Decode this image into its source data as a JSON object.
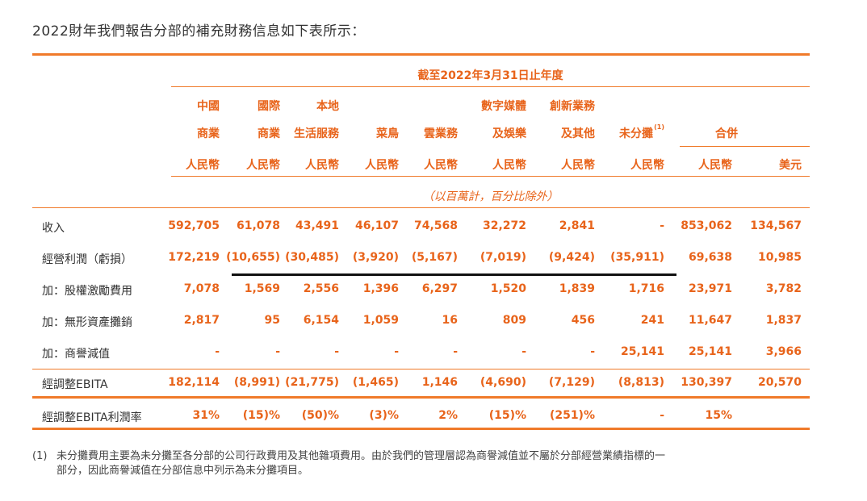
{
  "intro": "2022財年我們報告分部的補充財務信息如下表所示：",
  "period": "截至2022年3月31日止年度",
  "columns": [
    {
      "l1": "中國",
      "l2": "商業",
      "cur": "人民幣"
    },
    {
      "l1": "國際",
      "l2": "商業",
      "cur": "人民幣"
    },
    {
      "l1": "本地",
      "l2": "生活服務",
      "cur": "人民幣"
    },
    {
      "l1": "",
      "l2": "菜鳥",
      "cur": "人民幣"
    },
    {
      "l1": "",
      "l2": "雲業務",
      "cur": "人民幣"
    },
    {
      "l1": "數字媒體",
      "l2": "及娛樂",
      "cur": "人民幣"
    },
    {
      "l1": "創新業務",
      "l2": "及其他",
      "cur": "人民幣"
    },
    {
      "l1": "",
      "l2": "未分攤",
      "sup": "(1)",
      "cur": "人民幣"
    },
    {
      "l1": "",
      "l2": "",
      "cur": "人民幣"
    },
    {
      "l1": "",
      "l2": "",
      "cur": "美元"
    }
  ],
  "consolidated": "合併",
  "unit_note": "（以百萬計，百分比除外）",
  "rows": [
    {
      "label": "收入",
      "values": [
        "592,705",
        "61,078",
        "43,491",
        "46,107",
        "74,568",
        "32,272",
        "2,841",
        "-",
        "853,062",
        "134,567"
      ]
    },
    {
      "label": "經營利潤（虧損）",
      "values": [
        "172,219",
        "(10,655)",
        "(30,485)",
        "(3,920)",
        "(5,167)",
        "(7,019)",
        "(9,424)",
        "(35,911)",
        "69,638",
        "10,985"
      ]
    },
    {
      "label": "加：股權激勵費用",
      "values": [
        "7,078",
        "1,569",
        "2,556",
        "1,396",
        "6,297",
        "1,520",
        "1,839",
        "1,716",
        "23,971",
        "3,782"
      ]
    },
    {
      "label": "加：無形資產攤銷",
      "values": [
        "2,817",
        "95",
        "6,154",
        "1,059",
        "16",
        "809",
        "456",
        "241",
        "11,647",
        "1,837"
      ]
    },
    {
      "label": "加：商譽減值",
      "values": [
        "-",
        "-",
        "-",
        "-",
        "-",
        "-",
        "-",
        "25,141",
        "25,141",
        "3,966"
      ]
    },
    {
      "label": "經調整EBITA",
      "values": [
        "182,114",
        "(8,991)",
        "(21,775)",
        "(1,465)",
        "1,146",
        "(4,690)",
        "(7,129)",
        "(8,813)",
        "130,397",
        "20,570"
      ]
    },
    {
      "label": "經調整EBITA利潤率",
      "values": [
        "31%",
        "(15)%",
        "(50)%",
        "(3)%",
        "2%",
        "(15)%",
        "(251)%",
        "-",
        "15%",
        ""
      ]
    }
  ],
  "footnote_num": "(1)",
  "footnote_line1": "未分攤費用主要為未分攤至各分部的公司行政費用及其他雜項費用。由於我們的管理層認為商譽減值並不屬於分部經營業績指標的一",
  "footnote_line2": "部分，因此商譽減值在分部信息中列示為未分攤項目。",
  "colors": {
    "accent": "#e8641b",
    "rule": "#f07a2a"
  }
}
